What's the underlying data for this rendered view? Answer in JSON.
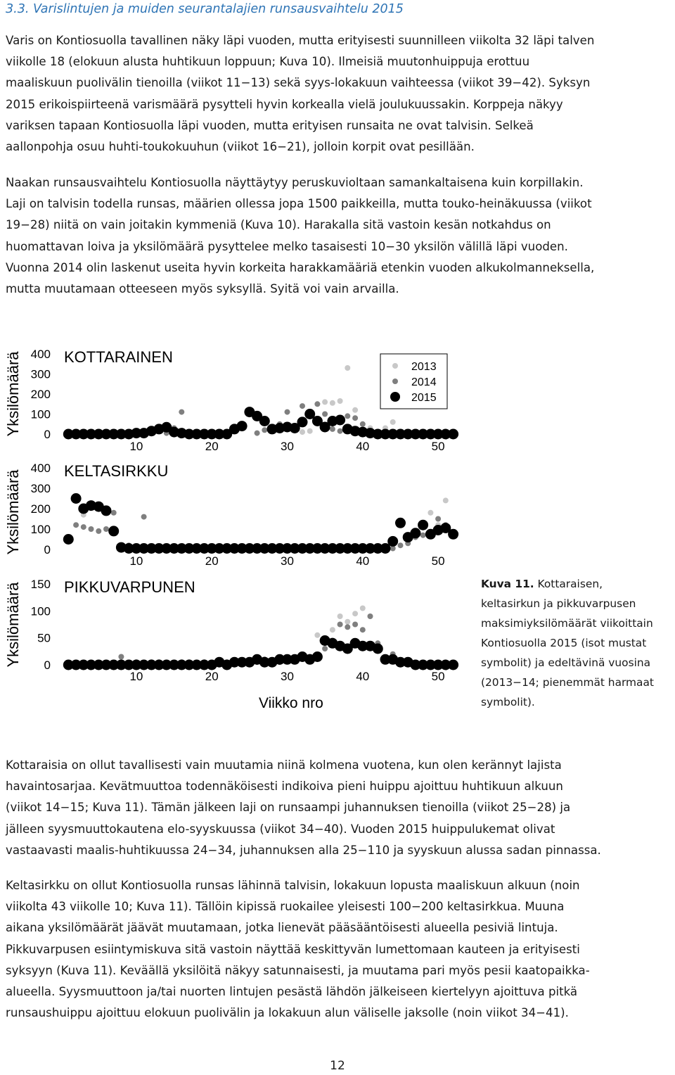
{
  "heading": "3.3. Varislintujen ja muiden seurantalajien runsausvaihtelu 2015",
  "paragraphs": [
    [
      "Varis on Kontiosuolla tavallinen näky läpi vuoden, mutta erityisesti suunnilleen viikolta 32 läpi talven",
      "viikolle 18 (elokuun alusta huhtikuun loppuun; Kuva 10). Ilmeisiä muutonhuippuja erottuu",
      "maaliskuun puolivälin tienoilla (viikot 11−13) sekä syys-lokakuun vaihteessa (viikot 39−42). Syksyn",
      "2015 erikoispiirteenä varismäärä pysytteli hyvin korkealla vielä joulukuussakin. Korppeja näkyy",
      "variksen tapaan Kontiosuolla läpi vuoden, mutta erityisen runsaita ne ovat talvisin. Selkeä",
      "aallonpohja osuu huhti-toukokuuhun (viikot 16−21), jolloin korpit ovat pesillään."
    ],
    [
      "Naakan runsausvaihtelu Kontiosuolla näyttäytyy peruskuvioltaan samankaltaisena kuin korpillakin.",
      "Laji on talvisin todella runsas, määrien ollessa jopa 1500 paikkeilla, mutta touko-heinäkuussa (viikot",
      "19−28) niitä on vain joitakin kymmeniä (Kuva 10). Harakalla sitä vastoin kesän notkahdus on",
      "huomattavan loiva ja yksilömäärä pysyttelee melko tasaisesti 10−30 yksilön välillä läpi vuoden.",
      "Vuonna 2014 olin laskenut useita hyvin korkeita harakkamääriä etenkin vuoden alkukolmanneksella,",
      "mutta muutamaan otteeseen myös syksyllä. Syitä voi vain arvailla."
    ],
    [
      "Kottaraisia on ollut tavallisesti vain muutamia niinä kolmena vuotena, kun olen kerännyt lajista",
      "havaintosarjaa. Kevätmuuttoa todennäköisesti indikoiva pieni huippu ajoittuu huhtikuun alkuun",
      "(viikot 14−15; Kuva 11). Tämän jälkeen laji on runsaampi juhannuksen tienoilla (viikot 25−28) ja",
      "jälleen syysmuuttokautena elo-syyskuussa (viikot 34−40). Vuoden 2015 huippulukemat olivat",
      "vastaavasti maalis-huhtikuussa 24−34, juhannuksen alla 25−110 ja syyskuun alussa sadan pinnassa."
    ],
    [
      "Keltasirkku on ollut Kontiosuolla runsas lähinnä talvisin, lokakuun lopusta maaliskuun alkuun (noin",
      "viikolta 43 viikolle 10; Kuva 11). Tällöin kipissä ruokailee yleisesti 100−200 keltasirkkua. Muuna",
      "aikana yksilömäärät jäävät muutamaan, jotka lienevät pääsääntöisesti alueella pesiviä lintuja.",
      "Pikkuvarpusen esiintymiskuva sitä vastoin näyttää keskittyvän lumettomaan kauteen ja erityisesti",
      "syksyyn (Kuva 11). Keväällä yksilöitä näkyy satunnaisesti, ja muutama pari myös pesii kaatopaikka-",
      "alueella. Syysmuuttoon ja/tai nuorten lintujen pesästä lähdön jälkeiseen kiertelyyn ajoittuva pitkä",
      "runsaushuippu ajoittuu elokuun puolivälin ja lokakuun alun väliselle jaksolle (noin viikot 34−41)."
    ]
  ],
  "caption": {
    "label": "Kuva 11.",
    "lines": [
      " Kottaraisen,",
      "keltasirkun ja pikkuvarpusen",
      "maksimiyksilömäärät viikoittain",
      "Kontiosuolla 2015 (isot mustat",
      "symbolit) ja edeltävinä vuosina",
      "(2013−14; pienemmät harmaat",
      "symbolit)."
    ]
  },
  "page_number": "12",
  "colors": {
    "heading": "#2e74b5",
    "y2013": "#c8c8c8",
    "y2014": "#7f7f7f",
    "y2015": "#000000"
  },
  "chart_data": [
    {
      "type": "scatter",
      "title": "KOTTARAINEN",
      "ylabel": "Yksilömäärä",
      "xlabel": "",
      "xlim": [
        0,
        53
      ],
      "ylim": [
        0,
        400
      ],
      "yticks": [
        0,
        100,
        200,
        300,
        400
      ],
      "xticks": [
        10,
        20,
        30,
        40,
        50
      ],
      "legend": {
        "position": "top-right",
        "entries": [
          "2013",
          "2014",
          "2015"
        ]
      },
      "series": [
        {
          "name": "2013",
          "x": [
            31,
            32,
            33,
            35,
            36,
            37,
            38,
            39,
            41,
            42,
            43,
            44
          ],
          "y": [
            20,
            10,
            15,
            160,
            155,
            165,
            330,
            120,
            30,
            10,
            30,
            60
          ]
        },
        {
          "name": "2014",
          "x": [
            10,
            11,
            12,
            14,
            15,
            16,
            17,
            18,
            22,
            26,
            27,
            29,
            30,
            32,
            34,
            35,
            36,
            37,
            38,
            39,
            40,
            42,
            43
          ],
          "y": [
            5,
            10,
            5,
            5,
            30,
            110,
            5,
            10,
            5,
            5,
            20,
            50,
            110,
            140,
            150,
            100,
            25,
            15,
            90,
            80,
            50,
            10,
            5
          ]
        },
        {
          "name": "2015",
          "x": [
            1,
            2,
            3,
            4,
            5,
            6,
            7,
            8,
            9,
            10,
            11,
            12,
            13,
            14,
            15,
            16,
            17,
            18,
            19,
            20,
            21,
            22,
            23,
            24,
            25,
            26,
            27,
            28,
            29,
            30,
            31,
            32,
            33,
            34,
            35,
            36,
            37,
            38,
            39,
            40,
            41,
            42,
            43,
            44,
            45,
            46,
            47,
            48,
            49,
            50,
            51,
            52
          ],
          "y": [
            0,
            0,
            0,
            0,
            0,
            0,
            0,
            0,
            0,
            5,
            5,
            15,
            25,
            34,
            10,
            5,
            0,
            0,
            0,
            0,
            0,
            0,
            25,
            40,
            110,
            90,
            65,
            25,
            30,
            35,
            30,
            60,
            100,
            65,
            35,
            65,
            70,
            25,
            15,
            10,
            5,
            0,
            0,
            0,
            0,
            0,
            0,
            0,
            0,
            0,
            0,
            0
          ]
        }
      ]
    },
    {
      "type": "scatter",
      "title": "KELTASIRKKU",
      "ylabel": "Yksilömäärä",
      "xlabel": "",
      "xlim": [
        0,
        53
      ],
      "ylim": [
        0,
        400
      ],
      "yticks": [
        0,
        100,
        200,
        300,
        400
      ],
      "xticks": [
        10,
        20,
        30,
        40,
        50
      ],
      "series": [
        {
          "name": "2013",
          "x": [
            3,
            49,
            50,
            51
          ],
          "y": [
            170,
            180,
            120,
            240
          ]
        },
        {
          "name": "2014",
          "x": [
            1,
            2,
            3,
            4,
            5,
            6,
            7,
            8,
            9,
            11,
            44,
            45,
            46,
            47,
            48,
            49,
            50,
            51,
            52
          ],
          "y": [
            60,
            120,
            110,
            100,
            90,
            100,
            180,
            10,
            20,
            160,
            5,
            20,
            30,
            60,
            70,
            80,
            150,
            120,
            80
          ]
        },
        {
          "name": "2015",
          "x": [
            1,
            2,
            3,
            4,
            5,
            6,
            7,
            8,
            9,
            10,
            11,
            12,
            13,
            14,
            15,
            16,
            17,
            18,
            19,
            20,
            21,
            22,
            23,
            24,
            25,
            26,
            27,
            28,
            29,
            30,
            31,
            32,
            33,
            34,
            35,
            36,
            37,
            38,
            39,
            40,
            41,
            42,
            43,
            44,
            45,
            46,
            47,
            48,
            49,
            50,
            51,
            52
          ],
          "y": [
            50,
            250,
            200,
            215,
            210,
            190,
            90,
            10,
            5,
            5,
            5,
            5,
            5,
            5,
            5,
            5,
            5,
            5,
            5,
            5,
            5,
            5,
            5,
            5,
            5,
            5,
            5,
            5,
            5,
            5,
            5,
            5,
            5,
            5,
            5,
            5,
            5,
            5,
            5,
            5,
            5,
            5,
            5,
            40,
            130,
            60,
            80,
            120,
            75,
            95,
            105,
            75
          ]
        }
      ]
    },
    {
      "type": "scatter",
      "title": "PIKKUVARPUNEN",
      "ylabel": "Yksilömäärä",
      "xlabel": "Viikko nro",
      "xlim": [
        0,
        53
      ],
      "ylim": [
        0,
        150
      ],
      "yticks": [
        0,
        50,
        100,
        150
      ],
      "xticks": [
        10,
        20,
        30,
        40,
        50
      ],
      "series": [
        {
          "name": "2013",
          "x": [
            34,
            36,
            37,
            38,
            39,
            40
          ],
          "y": [
            55,
            65,
            90,
            80,
            95,
            105
          ]
        },
        {
          "name": "2014",
          "x": [
            8,
            10,
            12,
            13,
            16,
            17,
            19,
            21,
            22,
            26,
            27,
            29,
            31,
            32,
            33,
            35,
            36,
            37,
            38,
            39,
            40,
            41,
            42,
            44
          ],
          "y": [
            15,
            5,
            5,
            5,
            5,
            5,
            5,
            5,
            5,
            5,
            10,
            5,
            10,
            15,
            15,
            30,
            45,
            75,
            70,
            75,
            65,
            90,
            40,
            20
          ]
        },
        {
          "name": "2015",
          "x": [
            1,
            2,
            3,
            4,
            5,
            6,
            7,
            8,
            9,
            10,
            11,
            12,
            13,
            14,
            15,
            16,
            17,
            18,
            19,
            20,
            21,
            22,
            23,
            24,
            25,
            26,
            27,
            28,
            29,
            30,
            31,
            32,
            33,
            34,
            35,
            36,
            37,
            38,
            39,
            40,
            41,
            42,
            43,
            44,
            45,
            46,
            47,
            48,
            49,
            50,
            51,
            52
          ],
          "y": [
            0,
            0,
            0,
            0,
            0,
            0,
            0,
            0,
            0,
            0,
            0,
            0,
            0,
            0,
            0,
            0,
            0,
            0,
            0,
            0,
            5,
            0,
            5,
            5,
            5,
            10,
            5,
            5,
            10,
            10,
            10,
            15,
            10,
            15,
            45,
            40,
            35,
            30,
            40,
            35,
            35,
            30,
            10,
            10,
            5,
            5,
            0,
            0,
            0,
            0,
            0,
            0
          ]
        }
      ]
    }
  ]
}
